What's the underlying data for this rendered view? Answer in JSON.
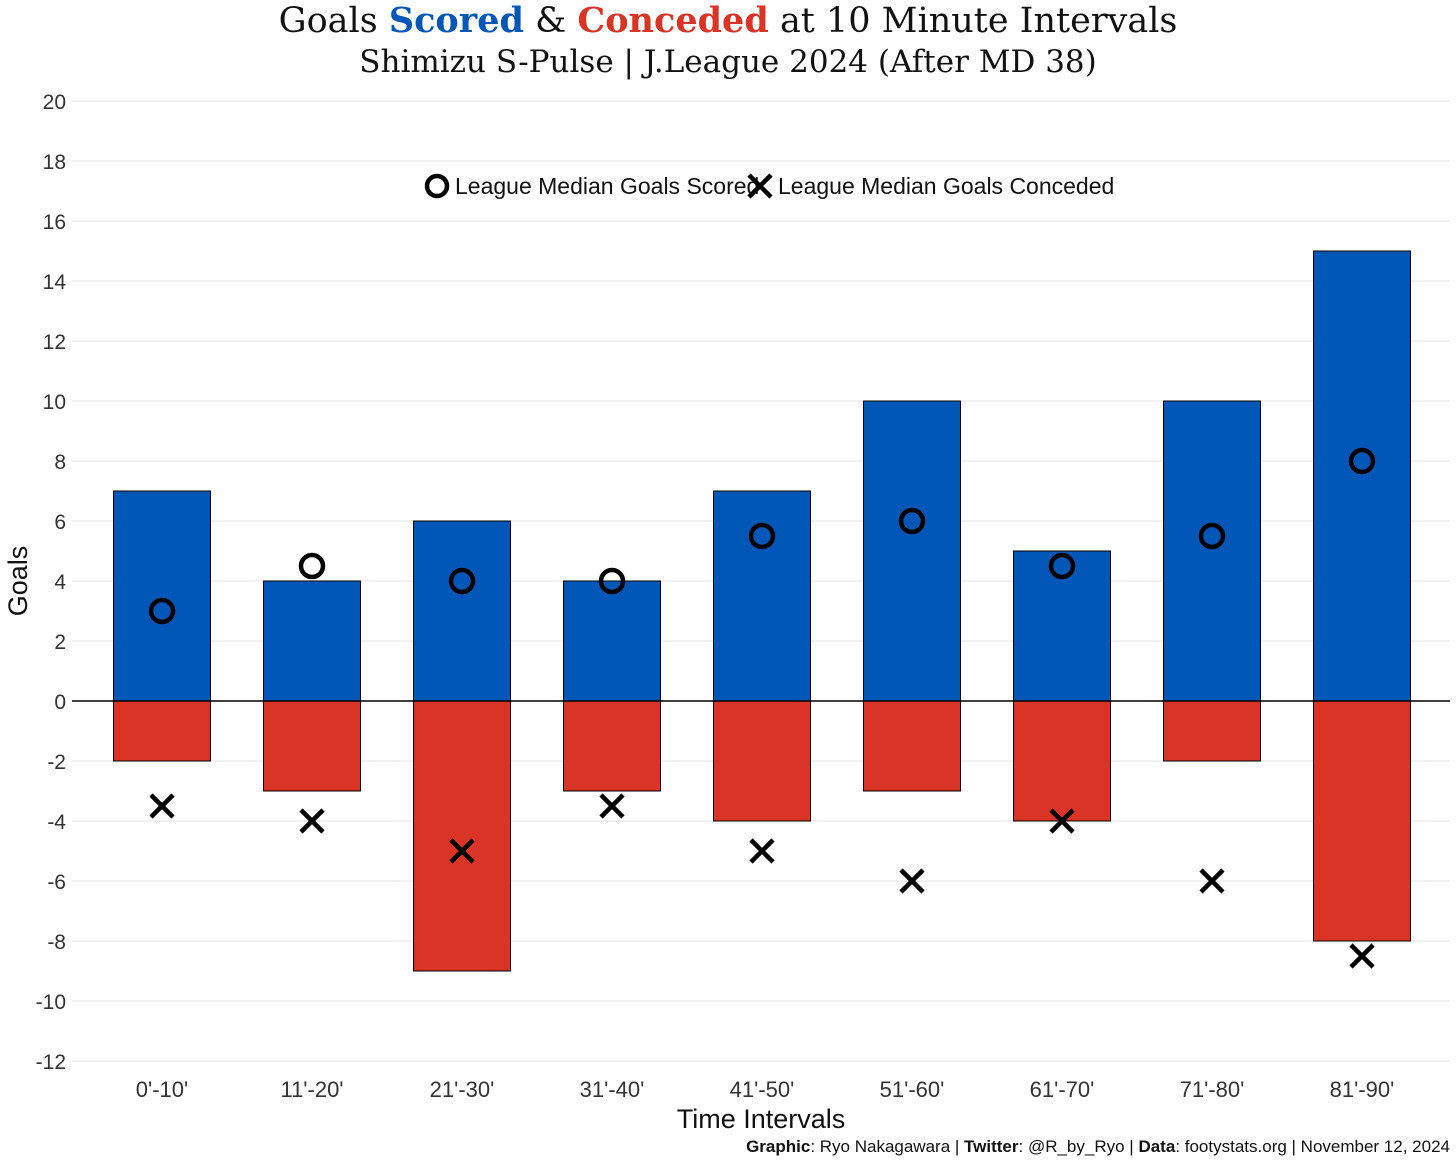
{
  "title": {
    "prefix": "Goals ",
    "scored_word": "Scored",
    "amp": " & ",
    "conceded_word": "Conceded",
    "suffix": " at 10 Minute Intervals"
  },
  "subtitle": "Shimizu S-Pulse | J.League 2024 (After MD 38)",
  "caption": {
    "graphic_label": "Graphic",
    "graphic_value": ": Ryo Nakagawara | ",
    "twitter_label": "Twitter",
    "twitter_value": ": @R_by_Ryo | ",
    "data_label": "Data",
    "data_value": ": footystats.org | November 12, 2024"
  },
  "colors": {
    "scored": "#0057B8",
    "conceded": "#D93425"
  },
  "chart_data": {
    "type": "bar",
    "xlabel": "Time Intervals",
    "ylabel": "Goals",
    "ylim": [
      -12,
      20
    ],
    "yticks": [
      -12,
      -10,
      -8,
      -6,
      -4,
      -2,
      0,
      2,
      4,
      6,
      8,
      10,
      12,
      14,
      16,
      18,
      20
    ],
    "grid": true,
    "categories": [
      "0'-10'",
      "11'-20'",
      "21'-30'",
      "31'-40'",
      "41'-50'",
      "51'-60'",
      "61'-70'",
      "71'-80'",
      "81'-90'"
    ],
    "series": [
      {
        "name": "Scored",
        "values": [
          7,
          4,
          6,
          4,
          7,
          10,
          5,
          10,
          15
        ]
      },
      {
        "name": "Conceded",
        "values": [
          -2,
          -3,
          -9,
          -3,
          -4,
          -3,
          -4,
          -2,
          -8
        ]
      }
    ],
    "markers": [
      {
        "name": "League Median Goals Scored",
        "symbol": "circle",
        "values": [
          3,
          4.5,
          4,
          4,
          5.5,
          6,
          4.5,
          5.5,
          8
        ]
      },
      {
        "name": "League Median Goals Conceded",
        "symbol": "cross",
        "values": [
          -3.5,
          -4,
          -5,
          -3.5,
          -5,
          -6,
          -4,
          -6,
          -8.5
        ]
      }
    ],
    "legend_position": "top-center"
  }
}
